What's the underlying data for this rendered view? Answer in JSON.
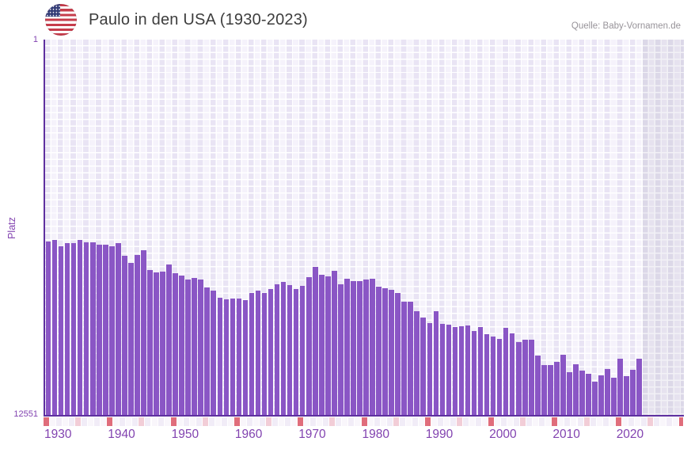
{
  "header": {
    "title": "Paulo in den USA (1930-2023)",
    "source": "Quelle: Baby-Vornamen.de",
    "flag_icon": "us-flag-icon"
  },
  "y_axis": {
    "title": "Platz",
    "top_tick": "1",
    "bottom_tick": "12551"
  },
  "x_axis": {
    "ticks": [
      "1930",
      "1940",
      "1950",
      "1960",
      "1970",
      "1980",
      "1990",
      "2000",
      "2010",
      "2020"
    ]
  },
  "chart_data": {
    "type": "bar",
    "title": "Paulo in den USA (1930-2023)",
    "xlabel": "",
    "ylabel": "Platz",
    "ylim": [
      12551,
      1
    ],
    "y_axis_inverted": true,
    "grid": true,
    "legend_position": "none",
    "years": [
      1930,
      1931,
      1932,
      1933,
      1934,
      1935,
      1936,
      1937,
      1938,
      1939,
      1940,
      1941,
      1942,
      1943,
      1944,
      1945,
      1946,
      1947,
      1948,
      1949,
      1950,
      1951,
      1952,
      1953,
      1954,
      1955,
      1956,
      1957,
      1958,
      1959,
      1960,
      1961,
      1962,
      1963,
      1964,
      1965,
      1966,
      1967,
      1968,
      1969,
      1970,
      1971,
      1972,
      1973,
      1974,
      1975,
      1976,
      1977,
      1978,
      1979,
      1980,
      1981,
      1982,
      1983,
      1984,
      1985,
      1986,
      1987,
      1988,
      1989,
      1990,
      1991,
      1992,
      1993,
      1994,
      1995,
      1996,
      1997,
      1998,
      1999,
      2000,
      2001,
      2002,
      2003,
      2004,
      2005,
      2006,
      2007,
      2008,
      2009,
      2010,
      2011,
      2012,
      2013,
      2014,
      2015,
      2016,
      2017,
      2018,
      2019,
      2020,
      2021,
      2022,
      2023
    ],
    "values": [
      6767,
      6714,
      6925,
      6819,
      6819,
      6714,
      6793,
      6793,
      6872,
      6872,
      6925,
      6819,
      7244,
      7482,
      7217,
      7058,
      7721,
      7801,
      7774,
      7535,
      7827,
      7907,
      8039,
      7986,
      8039,
      8305,
      8411,
      8650,
      8703,
      8676,
      8676,
      8729,
      8490,
      8411,
      8490,
      8358,
      8198,
      8119,
      8225,
      8358,
      8252,
      7960,
      7615,
      7880,
      7933,
      7748,
      8198,
      8013,
      8092,
      8092,
      8039,
      8013,
      8278,
      8331,
      8384,
      8490,
      8782,
      8782,
      9101,
      9313,
      9499,
      9101,
      9525,
      9552,
      9631,
      9605,
      9578,
      9764,
      9631,
      9870,
      9949,
      10029,
      9658,
      9843,
      10135,
      10055,
      10055,
      10586,
      10904,
      10904,
      10798,
      10560,
      11143,
      10878,
      11090,
      11196,
      11461,
      11249,
      11037,
      11328,
      10692,
      11275,
      11063,
      10692
    ],
    "bar_color": "#8a56c5"
  },
  "bottom_strip": {
    "start_year": 1930,
    "end_year": 2030,
    "decade_color": "#e06d7b",
    "half_decade_color": "#f2cdd7",
    "cell_color_even": "#f1ecf7",
    "cell_color_odd": "#f9f6fb"
  },
  "colors": {
    "axis": "#5e2f9f",
    "tick_text": "#8243b0",
    "title_text": "#3d3d3d",
    "source_text": "#979399",
    "plot_cell_dark": "#e9e4f4",
    "plot_cell_light": "#f5f2fb",
    "future_cell_dark": "#dcd8e8",
    "future_cell_light": "#e6e2ef"
  }
}
